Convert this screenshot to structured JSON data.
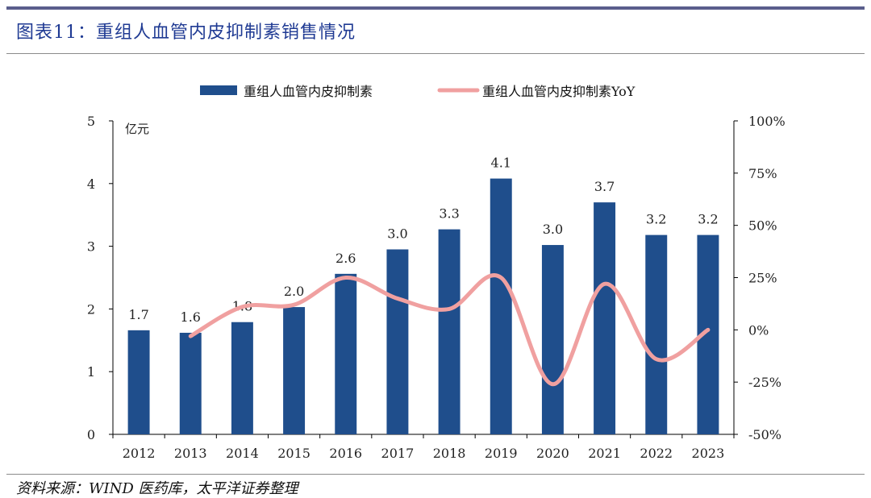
{
  "header": {
    "title": "图表11：重组人血管内皮抑制素销售情况"
  },
  "footer": {
    "source": "资料来源：WIND 医药库，太平洋证券整理"
  },
  "colors": {
    "bar": "#1f4e8c",
    "line": "#f0a0a0",
    "rule": "#5a5e8c",
    "title": "#1f3a93"
  },
  "chart_data": {
    "type": "bar",
    "categories": [
      "2012",
      "2013",
      "2014",
      "2015",
      "2016",
      "2017",
      "2018",
      "2019",
      "2020",
      "2021",
      "2022",
      "2023"
    ],
    "series": [
      {
        "name": "重组人血管内皮抑制素",
        "type": "bar",
        "axis": "left",
        "values": [
          1.66,
          1.62,
          1.79,
          2.03,
          2.56,
          2.95,
          3.27,
          4.08,
          3.02,
          3.7,
          3.18,
          3.18
        ],
        "labels": [
          "1.7",
          "1.6",
          "1.8",
          "2.0",
          "2.6",
          "3.0",
          "3.3",
          "4.1",
          "3.0",
          "3.7",
          "3.2",
          "3.2"
        ]
      },
      {
        "name": "重组人血管内皮抑制素YoY",
        "type": "line",
        "axis": "right",
        "values": [
          null,
          -3,
          11,
          12,
          25,
          15,
          10,
          25,
          -26,
          22,
          -14,
          0
        ]
      }
    ],
    "y_left": {
      "unit_label": "亿元",
      "lim": [
        0,
        5
      ],
      "ticks": [
        "0",
        "1",
        "2",
        "3",
        "4",
        "5"
      ]
    },
    "y_right": {
      "lim": [
        -50,
        100
      ],
      "ticks": [
        "-50%",
        "-25%",
        "0%",
        "25%",
        "50%",
        "75%",
        "100%"
      ]
    },
    "legend": "top-center",
    "grid": false
  }
}
